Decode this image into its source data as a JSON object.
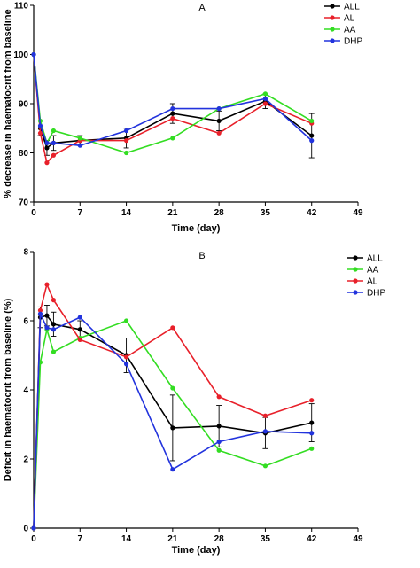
{
  "chart_data": [
    {
      "panel": "A",
      "type": "line",
      "xlabel": "Time (day)",
      "ylabel": "% decrease in haematocrit from baseline",
      "xlim": [
        0,
        49
      ],
      "ylim": [
        70,
        110
      ],
      "xticks": [
        0,
        7,
        14,
        21,
        28,
        35,
        42,
        49
      ],
      "yticks": [
        70,
        80,
        90,
        100,
        110
      ],
      "legend_position": "top-right",
      "series": [
        {
          "name": "ALL",
          "color": "#000000",
          "x": [
            0,
            1,
            2,
            3,
            7,
            14,
            21,
            28,
            35,
            42
          ],
          "y": [
            100,
            85,
            81,
            82,
            82.5,
            83,
            88,
            86.5,
            90.5,
            83.5
          ],
          "err": [
            0,
            1.5,
            1.5,
            1.5,
            1,
            2,
            2,
            2,
            1.5,
            4.5
          ]
        },
        {
          "name": "AL",
          "color": "#e8202a",
          "x": [
            0,
            1,
            2,
            3,
            7,
            14,
            21,
            28,
            35,
            42
          ],
          "y": [
            100,
            84,
            78,
            79.5,
            82.5,
            82.5,
            87,
            84,
            90,
            86
          ]
        },
        {
          "name": "AA",
          "color": "#33dd22",
          "x": [
            0,
            1,
            2,
            3,
            7,
            14,
            21,
            28,
            35,
            42
          ],
          "y": [
            100,
            86.5,
            82,
            84.5,
            83,
            80,
            83,
            89,
            92,
            86.5
          ]
        },
        {
          "name": "DHP",
          "color": "#2233dd",
          "x": [
            0,
            1,
            2,
            3,
            7,
            14,
            21,
            28,
            35,
            42
          ],
          "y": [
            100,
            85.5,
            82,
            82,
            81.5,
            84.5,
            89,
            89,
            91,
            82.5
          ]
        }
      ]
    },
    {
      "panel": "B",
      "type": "line",
      "xlabel": "Time (day)",
      "ylabel": "Deficit in haematocrit from baseline (%)",
      "xlim": [
        0,
        49
      ],
      "ylim": [
        0,
        8
      ],
      "xticks": [
        0,
        7,
        14,
        21,
        28,
        35,
        42,
        49
      ],
      "yticks": [
        0,
        2,
        4,
        6,
        8
      ],
      "legend_position": "top-right",
      "series": [
        {
          "name": "ALL",
          "color": "#000000",
          "x": [
            0,
            1,
            2,
            3,
            7,
            14,
            21,
            28,
            35,
            42
          ],
          "y": [
            0,
            6.1,
            6.15,
            5.9,
            5.75,
            5.0,
            2.9,
            2.95,
            2.75,
            3.05
          ],
          "err": [
            0,
            0.3,
            0.3,
            0.35,
            0.25,
            0.5,
            0.95,
            0.6,
            0.45,
            0.55
          ]
        },
        {
          "name": "AA",
          "color": "#33dd22",
          "x": [
            0,
            1,
            2,
            3,
            7,
            14,
            21,
            28,
            35,
            42
          ],
          "y": [
            0,
            4.8,
            5.75,
            5.1,
            5.5,
            6.0,
            4.05,
            2.25,
            1.8,
            2.3
          ]
        },
        {
          "name": "AL",
          "color": "#e8202a",
          "x": [
            0,
            1,
            2,
            3,
            7,
            14,
            21,
            28,
            35,
            42
          ],
          "y": [
            0,
            6.3,
            7.05,
            6.6,
            5.45,
            4.95,
            5.8,
            3.8,
            3.25,
            3.7
          ]
        },
        {
          "name": "DHP",
          "color": "#2233dd",
          "x": [
            0,
            1,
            2,
            3,
            7,
            14,
            21,
            28,
            35,
            42
          ],
          "y": [
            0,
            6.2,
            5.8,
            5.75,
            6.1,
            4.75,
            1.7,
            2.5,
            2.8,
            2.75
          ]
        }
      ]
    }
  ]
}
